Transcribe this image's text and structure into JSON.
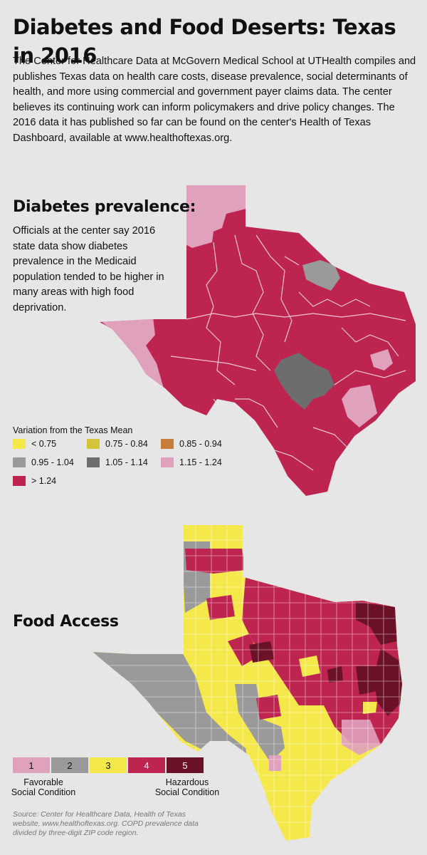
{
  "title": "Diabetes and Food Deserts: Texas in 2016",
  "intro": "The Center for Healthcare Data at McGovern Medical School at UTHealth compiles and publishes Texas data on health care costs, disease prevalence, social determinants of health, and more using commercial and government payer claims data. The center believes its continuing work can inform policymakers and drive policy changes. The 2016 data it has published so far can be found on the center's Health of Texas Dashboard, available at www.healthoftexas.org.",
  "diabetes": {
    "heading": "Diabetes prevalence:",
    "text": "Officials at the center say 2016 state data show diabetes prevalence in the Medicaid population tended to be higher in many areas with high food deprivation.",
    "legend_title": "Variation from the Texas Mean",
    "legend": [
      {
        "label": "< 0.75",
        "color": "#f5e84a"
      },
      {
        "label": "0.75 - 0.84",
        "color": "#d4c43a"
      },
      {
        "label": "0.85 - 0.94",
        "color": "#c77d3a"
      },
      {
        "label": "0.95 - 1.04",
        "color": "#9a9a9a"
      },
      {
        "label": "1.05 - 1.14",
        "color": "#6d6d6d"
      },
      {
        "label": "1.15 - 1.24",
        "color": "#e0a1bd"
      },
      {
        "label": "> 1.24",
        "color": "#be2450"
      }
    ]
  },
  "food": {
    "heading": "Food Access",
    "scale": [
      {
        "label": "1",
        "color": "#e0a1bd"
      },
      {
        "label": "2",
        "color": "#9a9a9a"
      },
      {
        "label": "3",
        "color": "#f5e84a"
      },
      {
        "label": "4",
        "color": "#be2450"
      },
      {
        "label": "5",
        "color": "#6b1228"
      }
    ],
    "left_label": "Favorable\nSocial Condition",
    "right_label": "Hazardous\nSocial Condition"
  },
  "source": "Source: Center for Healthcare Data, Health of Texas website, www.healthoftexas.org. COPD prevalence data divided by three-digit ZIP code region."
}
